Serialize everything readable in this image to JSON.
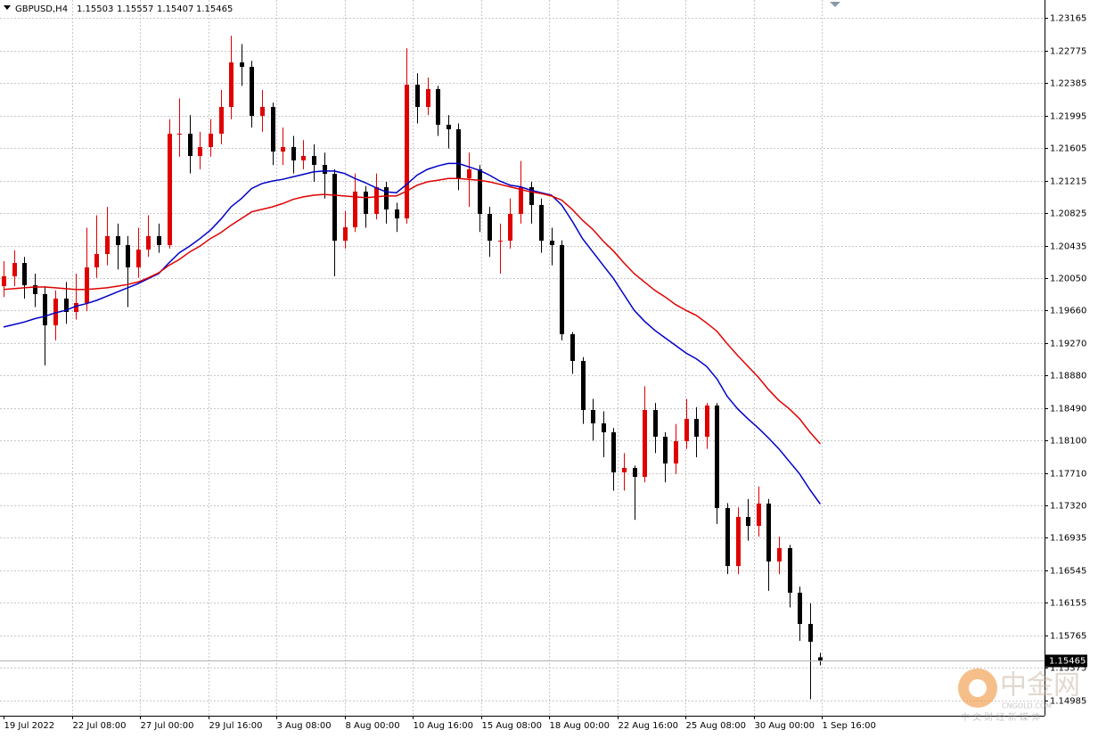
{
  "chart_data": {
    "type": "candlestick",
    "symbol": "GBPUSD,H4",
    "ylim": [
      1.14803,
      1.23379
    ],
    "yticks": [
      1.23165,
      1.22775,
      1.22385,
      1.21995,
      1.21605,
      1.21215,
      1.20825,
      1.20435,
      {
        "value": 1.2005,
        "label": "1.20050"
      },
      {
        "value": 1.1966,
        "label": "1.19660"
      },
      {
        "value": 1.1927,
        "label": "1.19270"
      },
      {
        "value": 1.1888,
        "label": "1.18880"
      },
      {
        "value": 1.1849,
        "label": "1.18490"
      },
      {
        "value": 1.181,
        "label": "1.18100"
      },
      {
        "value": 1.1771,
        "label": "1.17710"
      },
      {
        "value": 1.1732,
        "label": "1.17320"
      },
      1.16935,
      1.16545,
      1.16155,
      1.15765,
      1.15375,
      1.14985
    ],
    "x_labels": [
      "19 Jul 2022",
      "22 Jul 08:00",
      "27 Jul 00:00",
      "29 Jul 16:00",
      "3 Aug 08:00",
      "8 Aug 00:00",
      "10 Aug 16:00",
      "15 Aug 08:00",
      "18 Aug 00:00",
      "22 Aug 16:00",
      "25 Aug 08:00",
      "30 Aug 00:00",
      "1 Sep 16:00"
    ],
    "grid": true,
    "up_color": "#e00000",
    "down_color": "#000000",
    "candles": {
      "open": [
        1.1995,
        1.20068,
        1.20228,
        1.19961,
        1.19855,
        1.19481,
        1.19801,
        1.19641,
        1.19748,
        1.20175,
        1.20335,
        1.20549,
        1.20442,
        1.20175,
        1.20389,
        1.20549,
        1.20442,
        1.21777,
        1.21777,
        1.2151,
        1.21617,
        1.21777,
        1.22097,
        1.22631,
        1.22578,
        1.21991,
        1.22097,
        1.21563,
        1.21617,
        1.21457,
        1.2151,
        1.21403,
        1.21296,
        1.20495,
        1.20656,
        1.21083,
        1.20816,
        1.21136,
        1.20869,
        1.20762,
        1.22364,
        1.22097,
        1.22311,
        1.21884,
        1.2183,
        1.21243,
        1.2135,
        1.20816,
        1.20495,
        1.20495,
        1.20816,
        1.21136,
        1.20923,
        1.20495,
        1.20442,
        1.19374,
        1.19054,
        1.18466,
        1.18306,
        1.18199,
        1.17719,
        1.17772,
        1.17665,
        1.18466,
        1.18146,
        1.17825,
        1.18092,
        1.18359,
        1.18146,
        1.1852,
        1.17291,
        1.16597,
        1.17185,
        1.17078,
        1.17345,
        1.16651,
        1.16811,
        1.16277,
        1.15903,
        1.15503
      ],
      "high": [
        1.2025,
        1.2038,
        1.203,
        1.201,
        1.1995,
        1.199,
        1.2,
        1.201,
        1.2065,
        1.208,
        1.209,
        1.207,
        1.2055,
        1.2065,
        1.208,
        1.207,
        1.2195,
        1.222,
        1.22,
        1.218,
        1.2195,
        1.223,
        1.2295,
        1.2285,
        1.2265,
        1.223,
        1.2215,
        1.2185,
        1.2175,
        1.217,
        1.2165,
        1.2155,
        1.2135,
        1.2085,
        1.213,
        1.2115,
        1.213,
        1.212,
        1.2095,
        1.228,
        1.225,
        1.2245,
        1.2235,
        1.22,
        1.219,
        1.2155,
        1.214,
        1.209,
        1.207,
        1.21,
        1.2145,
        1.212,
        1.21,
        1.2065,
        1.205,
        1.194,
        1.191,
        1.186,
        1.1845,
        1.1825,
        1.1795,
        1.178,
        1.1875,
        1.1855,
        1.182,
        1.183,
        1.186,
        1.185,
        1.1855,
        1.1855,
        1.1735,
        1.173,
        1.174,
        1.1755,
        1.174,
        1.1695,
        1.1685,
        1.1635,
        1.1615,
        1.15557
      ],
      "low": [
        1.1982,
        1.1995,
        1.198,
        1.197,
        1.19,
        1.193,
        1.195,
        1.1955,
        1.1965,
        1.2005,
        1.202,
        1.2015,
        1.197,
        1.2005,
        1.203,
        1.2035,
        1.204,
        1.215,
        1.213,
        1.2135,
        1.215,
        1.2165,
        1.2195,
        1.2235,
        1.2185,
        1.218,
        1.214,
        1.214,
        1.213,
        1.2135,
        1.212,
        1.21,
        1.2007,
        1.204,
        1.206,
        1.2065,
        1.2075,
        1.207,
        1.206,
        1.207,
        1.219,
        1.22,
        1.2175,
        1.216,
        1.211,
        1.209,
        1.206,
        1.203,
        1.201,
        1.204,
        1.207,
        1.207,
        1.2035,
        1.202,
        1.193,
        1.189,
        1.183,
        1.181,
        1.179,
        1.175,
        1.175,
        1.1715,
        1.176,
        1.1795,
        1.176,
        1.177,
        1.18,
        1.179,
        1.18,
        1.171,
        1.165,
        1.165,
        1.169,
        1.1695,
        1.163,
        1.165,
        1.161,
        1.157,
        1.15,
        1.15407
      ],
      "close": [
        1.20068,
        1.20228,
        1.19961,
        1.19855,
        1.19481,
        1.19801,
        1.19641,
        1.19748,
        1.20175,
        1.20335,
        1.20549,
        1.20442,
        1.20175,
        1.20389,
        1.20549,
        1.20442,
        1.21777,
        1.21777,
        1.2151,
        1.21617,
        1.21777,
        1.22097,
        1.22631,
        1.22578,
        1.21991,
        1.22097,
        1.21563,
        1.21617,
        1.21457,
        1.2151,
        1.21403,
        1.21296,
        1.20495,
        1.20656,
        1.21083,
        1.20816,
        1.21136,
        1.20869,
        1.20762,
        1.22364,
        1.22097,
        1.22311,
        1.21884,
        1.2183,
        1.21243,
        1.2135,
        1.20816,
        1.20495,
        1.20495,
        1.20816,
        1.21136,
        1.20923,
        1.20495,
        1.20442,
        1.19374,
        1.19054,
        1.18466,
        1.18306,
        1.18199,
        1.17719,
        1.17772,
        1.17665,
        1.18466,
        1.18146,
        1.17825,
        1.18092,
        1.18359,
        1.18146,
        1.1852,
        1.17291,
        1.16597,
        1.17185,
        1.17078,
        1.17345,
        1.16651,
        1.16811,
        1.16277,
        1.15903,
        1.15689,
        1.15465
      ]
    },
    "lines": [
      {
        "color": "#0000c8",
        "values": [
          1.1946,
          1.1949,
          1.1952,
          1.1956,
          1.1959,
          1.1963,
          1.1966,
          1.1971,
          1.1974,
          1.1978,
          1.1983,
          1.1988,
          1.1993,
          1.1998,
          1.2004,
          1.201,
          1.2023,
          1.2035,
          1.2043,
          1.2052,
          1.2062,
          1.2075,
          1.209,
          1.21,
          1.2112,
          1.2118,
          1.2121,
          1.2123,
          1.2126,
          1.2129,
          1.2132,
          1.2133,
          1.2133,
          1.213,
          1.2124,
          1.2119,
          1.2113,
          1.2108,
          1.2107,
          1.2117,
          1.2128,
          1.2135,
          1.2139,
          1.2142,
          1.2142,
          1.2138,
          1.2134,
          1.2128,
          1.2121,
          1.2116,
          1.2114,
          1.211,
          1.2107,
          1.2104,
          1.2092,
          1.2073,
          1.2052,
          1.2036,
          1.202,
          1.2004,
          1.1985,
          1.1966,
          1.1953,
          1.1942,
          1.1933,
          1.1924,
          1.1915,
          1.1908,
          1.1899,
          1.1884,
          1.1863,
          1.1848,
          1.1836,
          1.1825,
          1.1813,
          1.18,
          1.1785,
          1.177,
          1.1751,
          1.1734
        ]
      },
      {
        "color": "#e00000",
        "values": [
          1.1991,
          1.1992,
          1.1993,
          1.1994,
          1.1994,
          1.1993,
          1.1992,
          1.1991,
          1.1991,
          1.1992,
          1.1993,
          1.1995,
          1.1997,
          1.2,
          1.2005,
          1.2011,
          1.202,
          1.2027,
          1.2036,
          1.2043,
          1.2052,
          1.2059,
          1.2068,
          1.2076,
          1.2084,
          1.2087,
          1.209,
          1.2094,
          1.2099,
          1.2102,
          1.2104,
          1.2105,
          1.2104,
          1.2103,
          1.2102,
          1.2101,
          1.2102,
          1.2103,
          1.2103,
          1.2109,
          1.2116,
          1.212,
          1.2122,
          1.2124,
          1.2124,
          1.2123,
          1.2122,
          1.212,
          1.2117,
          1.2114,
          1.2111,
          1.2108,
          1.2106,
          1.2103,
          1.2098,
          1.2087,
          1.2074,
          1.2063,
          1.2049,
          1.2037,
          1.2023,
          1.201,
          1.2,
          1.199,
          1.1982,
          1.1973,
          1.1966,
          1.196,
          1.1951,
          1.1941,
          1.1926,
          1.1912,
          1.1899,
          1.1886,
          1.1871,
          1.1858,
          1.1848,
          1.1836,
          1.182,
          1.1806
        ]
      }
    ]
  },
  "watermark": {
    "name": "中金网",
    "site": "CNGOLD.COM",
    "slogan": "中 文 财 经 新 媒 体"
  }
}
